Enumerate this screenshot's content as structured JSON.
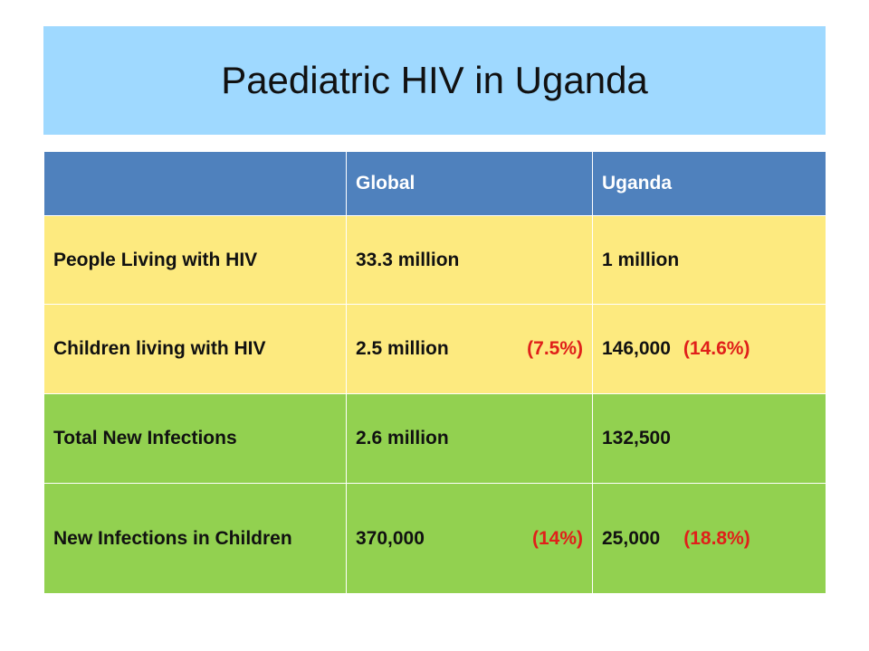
{
  "title": "Paediatric HIV in Uganda",
  "table": {
    "headers": [
      "",
      "Global",
      "Uganda"
    ],
    "rows": [
      {
        "label": "People Living with HIV",
        "global": "33.3 million",
        "global_pct": "",
        "uganda": "1 million",
        "uganda_pct": ""
      },
      {
        "label": "Children living with HIV",
        "global": "2.5 million",
        "global_pct": "(7.5%)",
        "uganda": "146,000",
        "uganda_pct": "(14.6%)"
      },
      {
        "label": "Total New Infections",
        "global": "2.6 million",
        "global_pct": "",
        "uganda": "132,500",
        "uganda_pct": ""
      },
      {
        "label": "New Infections in Children",
        "global": "370,000",
        "global_pct": "(14%)",
        "uganda": "25,000",
        "uganda_pct": "(18.8%)"
      }
    ]
  },
  "colors": {
    "title_bg": "#9fd9ff",
    "header_bg": "#4f81bd",
    "yellow_rows": "#fdea7f",
    "green_rows": "#92d150",
    "percent_text": "#e0201a"
  }
}
